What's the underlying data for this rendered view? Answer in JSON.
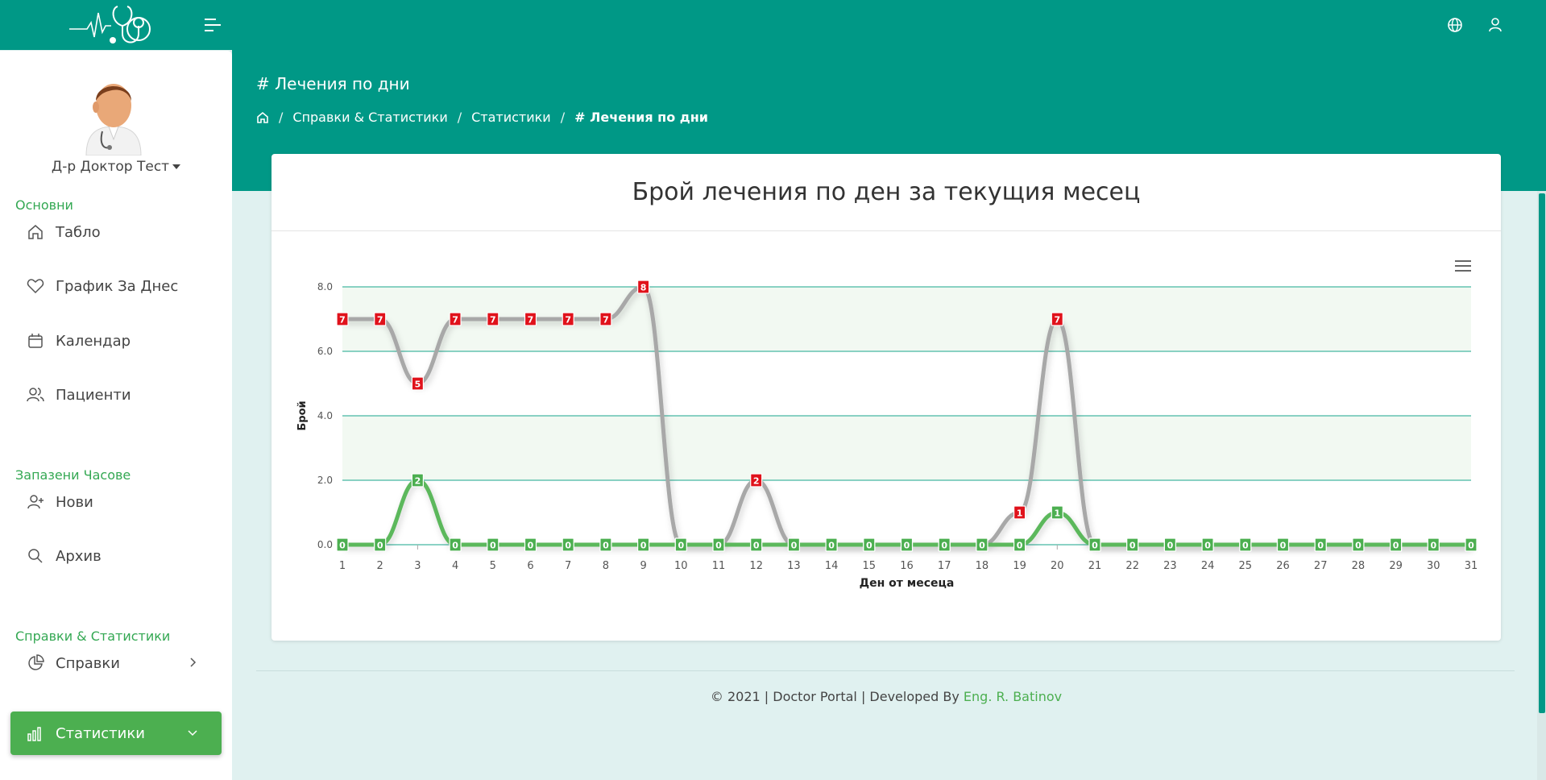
{
  "page": {
    "heading": "# Лечения по дни"
  },
  "breadcrumb": {
    "items": [
      "Справки & Статистики",
      "Статистики"
    ],
    "current": "# Лечения по дни"
  },
  "sidebar": {
    "user_name": "Д-р Доктор Тест",
    "sections": [
      {
        "title": "Основни"
      },
      {
        "title": "Запазени Часове"
      },
      {
        "title": "Справки & Статистики"
      }
    ],
    "items": [
      {
        "label": "Табло",
        "icon": "home-icon"
      },
      {
        "label": "График За Днес",
        "icon": "heart-icon"
      },
      {
        "label": "Календар",
        "icon": "calendar-icon"
      },
      {
        "label": "Пациенти",
        "icon": "users-icon"
      },
      {
        "label": "Нови",
        "icon": "user-plus-icon"
      },
      {
        "label": "Архив",
        "icon": "search-icon"
      },
      {
        "label": "Справки",
        "icon": "pie-chart-icon"
      },
      {
        "label": "Статистики",
        "icon": "bar-chart-icon",
        "active": true
      }
    ]
  },
  "card": {
    "title": "Брой лечения по ден за текущия месец"
  },
  "footer": {
    "text": "© 2021 | Doctor Portal | Developed By ",
    "author": "Eng. R. Batinov"
  },
  "colors": {
    "primary": "#009886",
    "green": "#4caf50",
    "series_gray": "#a8a8a8",
    "series_green": "#5cb85c",
    "label_red": "#e0121b",
    "label_green": "#4caf50"
  },
  "chart_data": {
    "type": "line",
    "title": "",
    "xlabel": "Ден от месеца",
    "ylabel": "Брой",
    "x": [
      1,
      2,
      3,
      4,
      5,
      6,
      7,
      8,
      9,
      10,
      11,
      12,
      13,
      14,
      15,
      16,
      17,
      18,
      19,
      20,
      21,
      22,
      23,
      24,
      25,
      26,
      27,
      28,
      29,
      30,
      31
    ],
    "ylim": [
      0,
      8
    ],
    "yticks": [
      "0.0",
      "2.0",
      "4.0",
      "6.0",
      "8.0"
    ],
    "series": [
      {
        "values": [
          7,
          7,
          5,
          7,
          7,
          7,
          7,
          7,
          8,
          0,
          0,
          2,
          0,
          0,
          0,
          0,
          0,
          0,
          1,
          7,
          0,
          0,
          0,
          0,
          0,
          0,
          0,
          0,
          0,
          0,
          0
        ],
        "color": "#a8a8a8",
        "label_color": "#e0121b"
      },
      {
        "values": [
          0,
          0,
          2,
          0,
          0,
          0,
          0,
          0,
          0,
          0,
          0,
          0,
          0,
          0,
          0,
          0,
          0,
          0,
          0,
          1,
          0,
          0,
          0,
          0,
          0,
          0,
          0,
          0,
          0,
          0,
          0
        ],
        "color": "#5cb85c",
        "label_color": "#4caf50"
      }
    ],
    "grid": true,
    "data_labels": true
  }
}
